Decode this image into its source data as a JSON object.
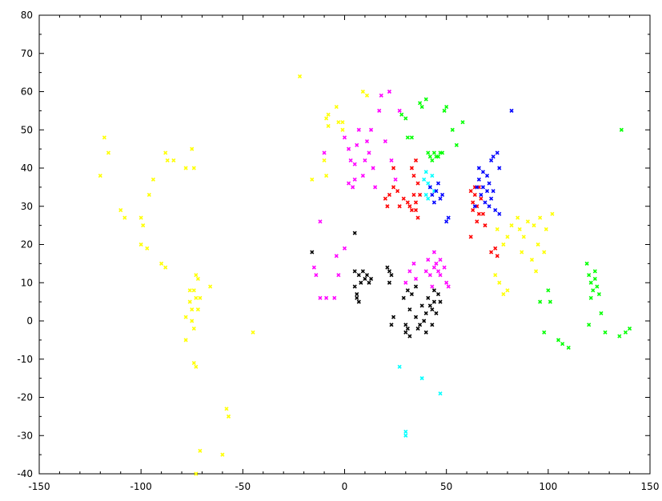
{
  "chart_data": {
    "type": "scatter",
    "title": "",
    "xlabel": "",
    "ylabel": "",
    "xlim": [
      -150,
      150
    ],
    "ylim": [
      -40,
      80
    ],
    "grid": false,
    "legend": "none",
    "x_ticks": [
      -150,
      -100,
      -50,
      0,
      50,
      100,
      150
    ],
    "y_ticks": [
      -40,
      -30,
      -20,
      -10,
      0,
      10,
      20,
      30,
      40,
      50,
      60,
      70,
      80
    ],
    "series": [
      {
        "color": "#ffff00",
        "points": [
          [
            -120,
            38
          ],
          [
            -118,
            48
          ],
          [
            -116,
            44
          ],
          [
            -110,
            29
          ],
          [
            -108,
            27
          ],
          [
            -100,
            27
          ],
          [
            -99,
            25
          ],
          [
            -100,
            20
          ],
          [
            -97,
            19
          ],
          [
            -96,
            33
          ],
          [
            -94,
            37
          ],
          [
            -90,
            15
          ],
          [
            -88,
            14
          ],
          [
            -88,
            44
          ],
          [
            -87,
            42
          ],
          [
            -84,
            42
          ],
          [
            -78,
            40
          ],
          [
            -75,
            45
          ],
          [
            -74,
            40
          ],
          [
            -76,
            5
          ],
          [
            -75,
            3
          ],
          [
            -74,
            8
          ],
          [
            -73,
            6
          ],
          [
            -72,
            11
          ],
          [
            -75,
            0
          ],
          [
            -74,
            -2
          ],
          [
            -72,
            3
          ],
          [
            -78,
            1
          ],
          [
            -71,
            6
          ],
          [
            -73,
            12
          ],
          [
            -76,
            8
          ],
          [
            -66,
            9
          ],
          [
            -78,
            -5
          ],
          [
            -74,
            -11
          ],
          [
            -73,
            -12
          ],
          [
            -71,
            -34
          ],
          [
            -73,
            -40
          ],
          [
            -58,
            -23
          ],
          [
            -57,
            -25
          ],
          [
            -60,
            -35
          ],
          [
            -45,
            -3
          ],
          [
            -22,
            64
          ],
          [
            -16,
            37
          ],
          [
            -10,
            42
          ],
          [
            -9,
            38
          ],
          [
            -9,
            53
          ],
          [
            -8,
            54
          ],
          [
            -8,
            51
          ],
          [
            -4,
            56
          ],
          [
            -3,
            52
          ],
          [
            -1,
            52
          ],
          [
            -1,
            50
          ],
          [
            9,
            60
          ],
          [
            11,
            59
          ],
          [
            75,
            24
          ],
          [
            78,
            20
          ],
          [
            80,
            22
          ],
          [
            82,
            25
          ],
          [
            85,
            27
          ],
          [
            86,
            24
          ],
          [
            88,
            22
          ],
          [
            90,
            26
          ],
          [
            93,
            25
          ],
          [
            96,
            27
          ],
          [
            99,
            24
          ],
          [
            102,
            28
          ],
          [
            87,
            18
          ],
          [
            92,
            16
          ],
          [
            94,
            13
          ],
          [
            74,
            12
          ],
          [
            76,
            10
          ],
          [
            78,
            7
          ],
          [
            80,
            8
          ],
          [
            95,
            20
          ],
          [
            98,
            18
          ]
        ]
      },
      {
        "color": "#ff00ff",
        "points": [
          [
            -10,
            44
          ],
          [
            -12,
            26
          ],
          [
            -14,
            12
          ],
          [
            -15,
            14
          ],
          [
            -12,
            6
          ],
          [
            -9,
            6
          ],
          [
            -5,
            6
          ],
          [
            -4,
            17
          ],
          [
            -3,
            12
          ],
          [
            0,
            19
          ],
          [
            0,
            48
          ],
          [
            2,
            45
          ],
          [
            3,
            42
          ],
          [
            2,
            36
          ],
          [
            4,
            35
          ],
          [
            5,
            37
          ],
          [
            5,
            41
          ],
          [
            6,
            46
          ],
          [
            7,
            50
          ],
          [
            9,
            38
          ],
          [
            10,
            42
          ],
          [
            11,
            47
          ],
          [
            12,
            44
          ],
          [
            13,
            50
          ],
          [
            14,
            40
          ],
          [
            15,
            35
          ],
          [
            17,
            55
          ],
          [
            18,
            59
          ],
          [
            20,
            47
          ],
          [
            22,
            60
          ],
          [
            23,
            42
          ],
          [
            25,
            37
          ],
          [
            27,
            55
          ],
          [
            32,
            13
          ],
          [
            35,
            11
          ],
          [
            40,
            13
          ],
          [
            41,
            16
          ],
          [
            42,
            12
          ],
          [
            44,
            14
          ],
          [
            45,
            15
          ],
          [
            46,
            13
          ],
          [
            47,
            16
          ],
          [
            49,
            14
          ],
          [
            50,
            10
          ],
          [
            51,
            9
          ],
          [
            44,
            18
          ],
          [
            43,
            9
          ],
          [
            47,
            12
          ],
          [
            30,
            10
          ],
          [
            34,
            15
          ]
        ]
      },
      {
        "color": "#ff0000",
        "points": [
          [
            20,
            32
          ],
          [
            21,
            30
          ],
          [
            22,
            33
          ],
          [
            24,
            40
          ],
          [
            24,
            35
          ],
          [
            26,
            34
          ],
          [
            27,
            30
          ],
          [
            29,
            32
          ],
          [
            31,
            31
          ],
          [
            32,
            30
          ],
          [
            33,
            29
          ],
          [
            34,
            33
          ],
          [
            35,
            31
          ],
          [
            34,
            38
          ],
          [
            36,
            36
          ],
          [
            37,
            33
          ],
          [
            35,
            29
          ],
          [
            36,
            27
          ],
          [
            33,
            40
          ],
          [
            35,
            42
          ],
          [
            62,
            34
          ],
          [
            63,
            31
          ],
          [
            63,
            29
          ],
          [
            64,
            33
          ],
          [
            65,
            30
          ],
          [
            66,
            28
          ],
          [
            65,
            26
          ],
          [
            67,
            32
          ],
          [
            68,
            28
          ],
          [
            69,
            25
          ],
          [
            64,
            35
          ],
          [
            66,
            35
          ],
          [
            62,
            22
          ],
          [
            72,
            18
          ],
          [
            74,
            19
          ],
          [
            75,
            17
          ]
        ]
      },
      {
        "color": "#00ff00",
        "points": [
          [
            28,
            54
          ],
          [
            30,
            53
          ],
          [
            31,
            48
          ],
          [
            33,
            48
          ],
          [
            37,
            57
          ],
          [
            38,
            56
          ],
          [
            40,
            58
          ],
          [
            41,
            44
          ],
          [
            42,
            43
          ],
          [
            43,
            42
          ],
          [
            44,
            44
          ],
          [
            45,
            43
          ],
          [
            46,
            43
          ],
          [
            47,
            44
          ],
          [
            48,
            44
          ],
          [
            49,
            55
          ],
          [
            50,
            56
          ],
          [
            53,
            50
          ],
          [
            55,
            46
          ],
          [
            58,
            52
          ],
          [
            119,
            15
          ],
          [
            120,
            12
          ],
          [
            121,
            10
          ],
          [
            122,
            8
          ],
          [
            123,
            11
          ],
          [
            121,
            6
          ],
          [
            124,
            9
          ],
          [
            123,
            13
          ],
          [
            125,
            7
          ],
          [
            100,
            8
          ],
          [
            101,
            5
          ],
          [
            96,
            5
          ],
          [
            98,
            -3
          ],
          [
            105,
            -5
          ],
          [
            110,
            -7
          ],
          [
            107,
            -6
          ],
          [
            128,
            -3
          ],
          [
            126,
            2
          ],
          [
            120,
            -1
          ],
          [
            136,
            50
          ],
          [
            135,
            -4
          ],
          [
            140,
            -2
          ],
          [
            138,
            -3
          ]
        ]
      },
      {
        "color": "#00ffff",
        "points": [
          [
            39,
            37
          ],
          [
            40,
            39
          ],
          [
            41,
            36
          ],
          [
            42,
            35
          ],
          [
            40,
            33
          ],
          [
            41,
            32
          ],
          [
            43,
            38
          ],
          [
            44,
            34
          ],
          [
            27,
            -12
          ],
          [
            38,
            -15
          ],
          [
            47,
            -19
          ],
          [
            30,
            -29
          ],
          [
            30,
            -30
          ]
        ]
      },
      {
        "color": "#0000ff",
        "points": [
          [
            42,
            35
          ],
          [
            43,
            33
          ],
          [
            44,
            31
          ],
          [
            45,
            34
          ],
          [
            46,
            36
          ],
          [
            47,
            32
          ],
          [
            48,
            33
          ],
          [
            50,
            26
          ],
          [
            51,
            27
          ],
          [
            65,
            35
          ],
          [
            66,
            37
          ],
          [
            67,
            33
          ],
          [
            68,
            35
          ],
          [
            69,
            31
          ],
          [
            70,
            34
          ],
          [
            71,
            36
          ],
          [
            72,
            32
          ],
          [
            73,
            34
          ],
          [
            70,
            38
          ],
          [
            68,
            39
          ],
          [
            66,
            40
          ],
          [
            72,
            42
          ],
          [
            73,
            43
          ],
          [
            75,
            44
          ],
          [
            76,
            40
          ],
          [
            74,
            29
          ],
          [
            76,
            28
          ],
          [
            71,
            30
          ],
          [
            82,
            55
          ],
          [
            64,
            30
          ]
        ]
      },
      {
        "color": "#000000",
        "points": [
          [
            -16,
            18
          ],
          [
            5,
            13
          ],
          [
            5,
            9
          ],
          [
            6,
            7
          ],
          [
            6,
            6
          ],
          [
            7,
            5
          ],
          [
            7,
            12
          ],
          [
            8,
            10
          ],
          [
            9,
            13
          ],
          [
            10,
            11
          ],
          [
            11,
            12
          ],
          [
            12,
            10
          ],
          [
            13,
            11
          ],
          [
            21,
            14
          ],
          [
            22,
            13
          ],
          [
            23,
            12
          ],
          [
            22,
            10
          ],
          [
            29,
            6
          ],
          [
            30,
            -1
          ],
          [
            30,
            -3
          ],
          [
            31,
            -2
          ],
          [
            32,
            3
          ],
          [
            32,
            -4
          ],
          [
            35,
            1
          ],
          [
            36,
            -2
          ],
          [
            37,
            -1
          ],
          [
            38,
            4
          ],
          [
            39,
            0
          ],
          [
            40,
            2
          ],
          [
            40,
            -3
          ],
          [
            41,
            6
          ],
          [
            42,
            4
          ],
          [
            43,
            3
          ],
          [
            44,
            5
          ],
          [
            45,
            2
          ],
          [
            46,
            7
          ],
          [
            47,
            5
          ],
          [
            43,
            -1
          ],
          [
            44,
            8
          ],
          [
            24,
            1
          ],
          [
            23,
            -1
          ],
          [
            5,
            23
          ],
          [
            33,
            7
          ],
          [
            35,
            9
          ],
          [
            31,
            8
          ]
        ]
      }
    ]
  }
}
